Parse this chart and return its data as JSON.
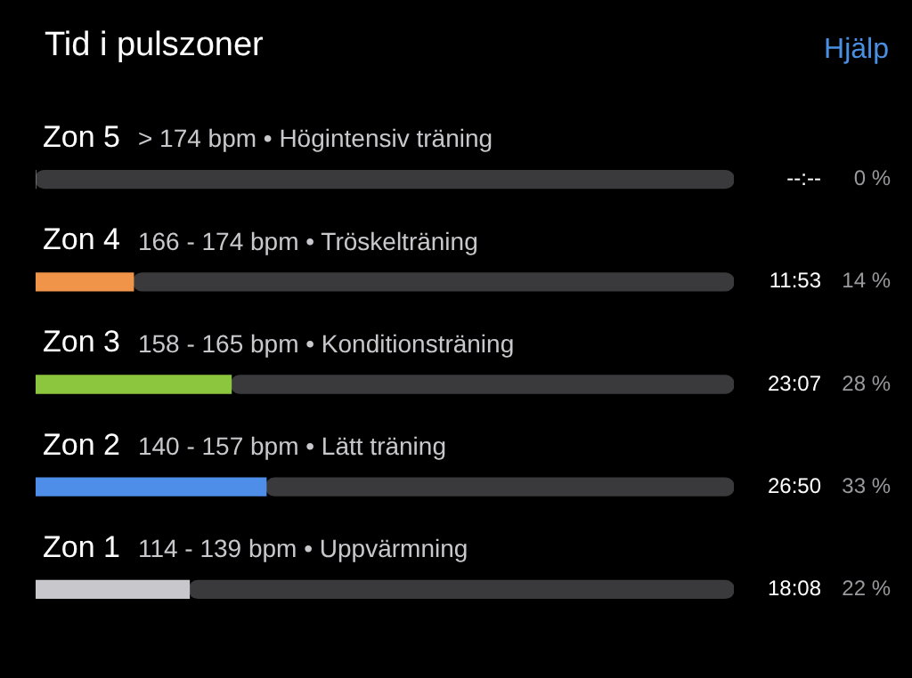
{
  "chart_data": {
    "type": "bar",
    "orientation": "horizontal",
    "stacked": true,
    "title": "Tid i pulszoner",
    "categories": [
      "Zon 5",
      "Zon 4",
      "Zon 3",
      "Zon 2",
      "Zon 1"
    ],
    "series": [
      {
        "colors": [
          "#8e8e93",
          "#f0944a",
          "#8cc63e",
          "#4f8ee8",
          "#c7c7cc"
        ],
        "values": [
          0,
          14,
          28,
          33,
          22
        ],
        "value_labels": [
          "0 %",
          "14 %",
          "28 %",
          "33 %",
          "22 %"
        ]
      },
      {
        "color": "#3a3a3c",
        "values": [
          100,
          86,
          72,
          67,
          78
        ]
      }
    ],
    "tick_labels": "y",
    "annotations": [
      "Hjälp",
      "> 174 bpm • Högintensiv träning",
      "--:--",
      "166 - 174 bpm • Tröskelträning",
      "11:53",
      "158 - 165 bpm • Konditionsträning",
      "23:07",
      "140 - 157 bpm • Lätt träning",
      "26:50",
      "114 - 139 bpm • Uppvärmning",
      "18:08"
    ]
  }
}
